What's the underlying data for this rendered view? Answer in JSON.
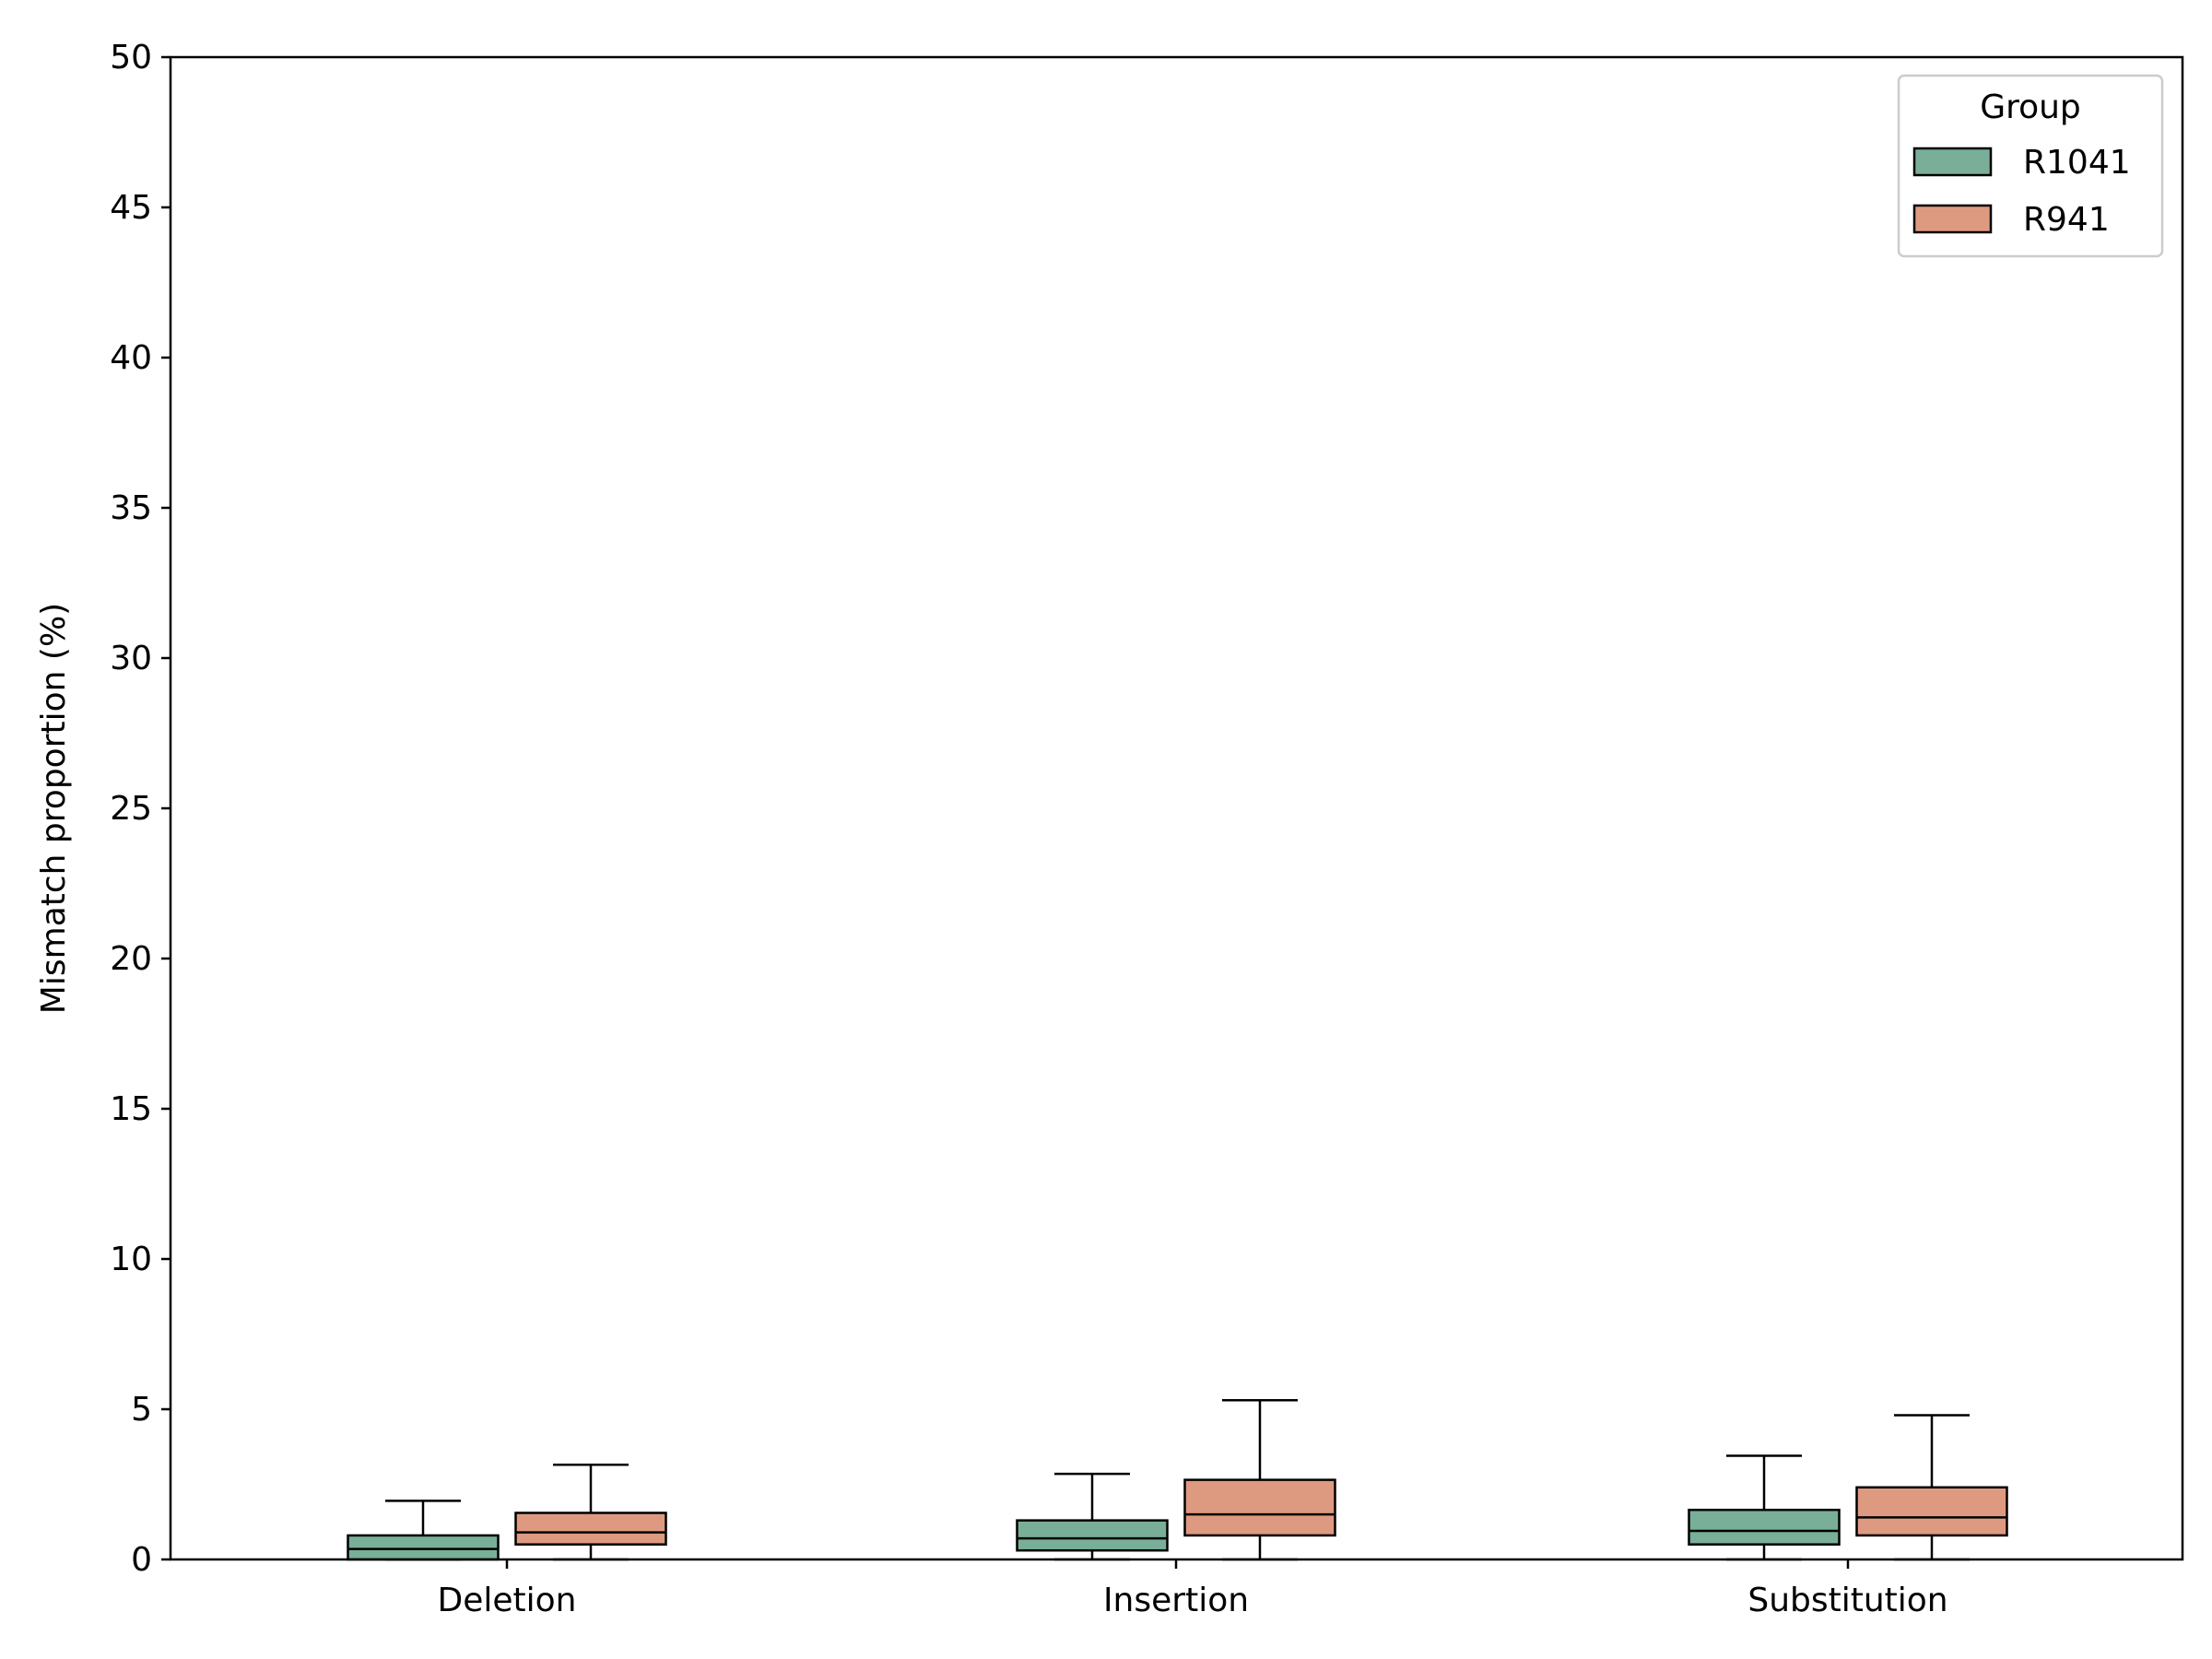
{
  "chart_data": {
    "type": "box",
    "title": "",
    "xlabel": "",
    "ylabel": "Mismatch proportion (%)",
    "ylim": [
      0,
      50
    ],
    "yticks": [
      0,
      5,
      10,
      15,
      20,
      25,
      30,
      35,
      40,
      45,
      50
    ],
    "categories": [
      "Deletion",
      "Insertion",
      "Substitution"
    ],
    "legend": {
      "title": "Group",
      "position": "top-right"
    },
    "series": [
      {
        "name": "R1041",
        "color": "#79af98",
        "boxes": [
          {
            "whislo": 0.0,
            "q1": 0.0,
            "med": 0.35,
            "q3": 0.8,
            "whishi": 1.95
          },
          {
            "whislo": 0.0,
            "q1": 0.3,
            "med": 0.7,
            "q3": 1.3,
            "whishi": 2.85
          },
          {
            "whislo": 0.0,
            "q1": 0.5,
            "med": 0.95,
            "q3": 1.65,
            "whishi": 3.45
          }
        ]
      },
      {
        "name": "R941",
        "color": "#de9a80",
        "boxes": [
          {
            "whislo": 0.0,
            "q1": 0.5,
            "med": 0.9,
            "q3": 1.55,
            "whishi": 3.15
          },
          {
            "whislo": 0.0,
            "q1": 0.8,
            "med": 1.5,
            "q3": 2.65,
            "whishi": 5.3
          },
          {
            "whislo": 0.0,
            "q1": 0.8,
            "med": 1.4,
            "q3": 2.4,
            "whishi": 4.8
          }
        ]
      }
    ]
  }
}
